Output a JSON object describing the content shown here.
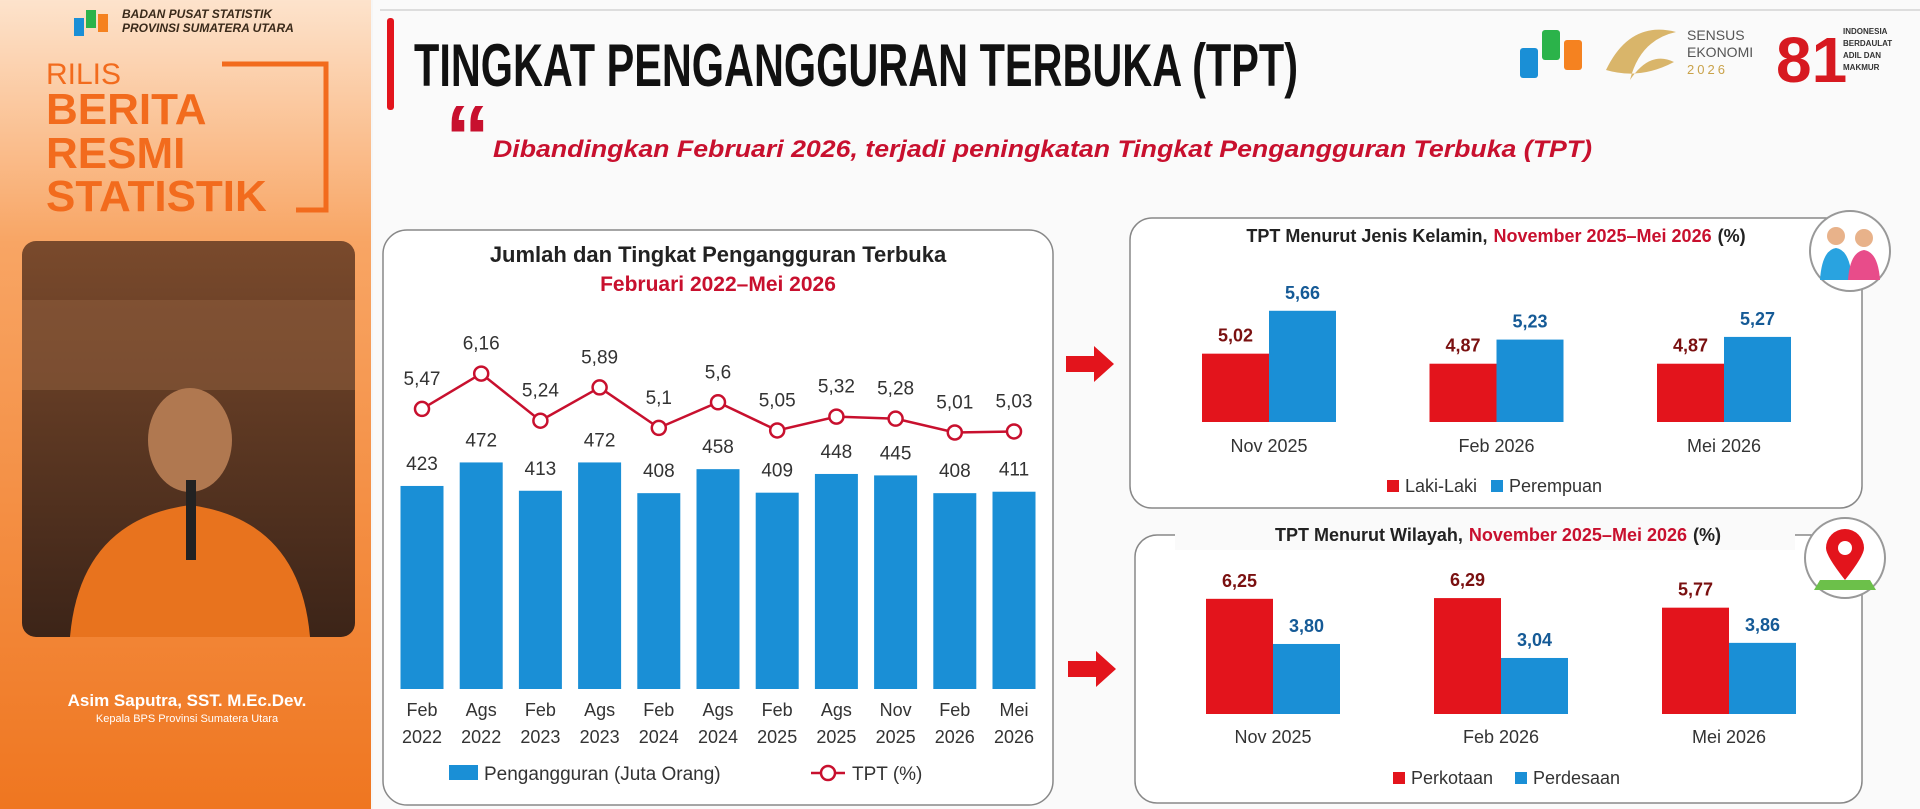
{
  "header": {
    "agency": "BADAN PUSAT STATISTIK",
    "province": "PROVINSI SUMATERA UTARA",
    "release": [
      "RILIS",
      "BERITA",
      "RESMI",
      "STATISTIK"
    ]
  },
  "speaker": {
    "name": "Asim Saputra, SST. M.Ec.Dev.",
    "role": "Kepala BPS Provinsi Sumatera Utara"
  },
  "slide": {
    "title": "TINGKAT PENGANGGURAN TERBUKA (TPT)",
    "quote_mark": "“",
    "quote": "Dibandingkan Februari 2026, terjadi peningkatan Tingkat Pengangguran Terbuka (TPT)",
    "logos": {
      "sensus": [
        "SENSUS",
        "EKONOMI",
        "2026"
      ],
      "anniversary": "81",
      "motto": [
        "INDONESIA",
        "BERDAULAT",
        "ADIL DAN",
        "MAKMUR"
      ]
    }
  },
  "chart_data": [
    {
      "type": "combo",
      "title": "Jumlah dan Tingkat Pengangguran Terbuka",
      "subtitle": "Februari 2022–Mei 2026",
      "categories": [
        "Feb 2022",
        "Ags 2022",
        "Feb 2023",
        "Ags 2023",
        "Feb 2024",
        "Ags 2024",
        "Feb 2025",
        "Ags 2025",
        "Nov 2025",
        "Feb 2026",
        "Mei 2026"
      ],
      "series": [
        {
          "name": "Pengangguran (Juta Orang)",
          "color": "#1a8fd6",
          "type": "bar",
          "values": [
            423,
            472,
            413,
            472,
            408,
            458,
            409,
            448,
            445,
            408,
            411
          ]
        },
        {
          "name": "TPT (%)",
          "color": "#c8102e",
          "type": "line",
          "axis": "y2",
          "values": [
            5.47,
            6.16,
            5.24,
            5.89,
            5.1,
            5.6,
            5.05,
            5.32,
            5.28,
            5.01,
            5.03
          ],
          "value_labels": [
            "5,47",
            "6,16",
            "5,24",
            "5,89",
            "5,1",
            "5,6",
            "5,05",
            "5,32",
            "5,28",
            "5,01",
            "5,03"
          ]
        }
      ],
      "ylim": [
        0,
        800
      ],
      "y2lim": [
        0,
        7.5
      ]
    },
    {
      "type": "bar",
      "title": "TPT Menurut Jenis Kelamin,",
      "period": "November 2025–Mei 2026",
      "unit": "(%)",
      "categories": [
        "Nov 2025",
        "Feb 2026",
        "Mei 2026"
      ],
      "series": [
        {
          "name": "Laki-Laki",
          "color": "#e3141c",
          "values": [
            5.02,
            4.87,
            4.87
          ],
          "value_labels": [
            "5,02",
            "4,87",
            "4,87"
          ]
        },
        {
          "name": "Perempuan",
          "color": "#1a8fd6",
          "values": [
            5.66,
            5.23,
            5.27
          ],
          "value_labels": [
            "5,66",
            "5,23",
            "5,27"
          ]
        }
      ],
      "ylim": [
        4,
        6
      ]
    },
    {
      "type": "bar",
      "title": "TPT Menurut Wilayah,",
      "period": "November 2025–Mei 2026",
      "unit": "(%)",
      "categories": [
        "Nov 2025",
        "Feb 2026",
        "Mei 2026"
      ],
      "series": [
        {
          "name": "Perkotaan",
          "color": "#e3141c",
          "values": [
            6.25,
            6.29,
            5.77
          ],
          "value_labels": [
            "6,25",
            "6,29",
            "5,77"
          ]
        },
        {
          "name": "Perdesaan",
          "color": "#1a8fd6",
          "values": [
            3.8,
            3.04,
            3.86
          ],
          "value_labels": [
            "3,80",
            "3,04",
            "3,86"
          ]
        }
      ],
      "ylim": [
        0,
        7
      ]
    }
  ]
}
